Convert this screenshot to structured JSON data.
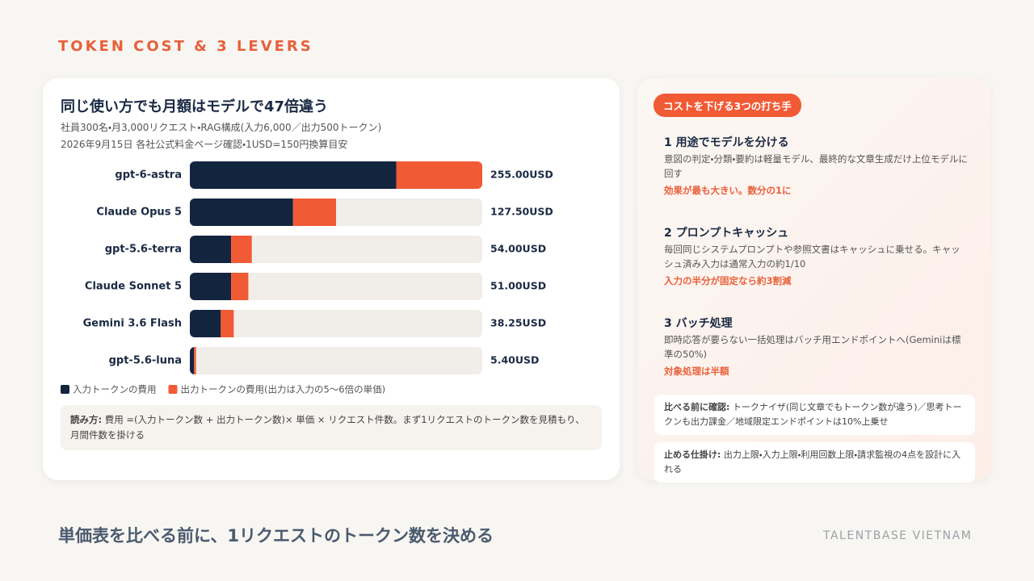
{
  "eyebrow": "TOKEN COST & 3 LEVERS",
  "chart_data": {
    "type": "stacked-barh",
    "title": "同じ使い方でも月額はモデルで47倍違う",
    "subtitle": [
      "社員300名・月3,000リクエスト・RAG構成(入力6,000／出力500トークン)",
      "2026年9月15日 各社公式料金ページ確認・1USD=150円換算目安"
    ],
    "categories": [
      "gpt-6-astra",
      "Claude Opus 5",
      "gpt-5.6-terra",
      "Claude Sonnet 5",
      "Gemini 3.6 Flash",
      "gpt-5.6-luna"
    ],
    "series": [
      {
        "name": "入力トークンの費用",
        "color": "#13243f",
        "values": [
          180,
          90,
          36,
          36,
          27,
          3.6
        ]
      },
      {
        "name": "出力トークンの費用(出力は入力の5〜6倍の単価)",
        "color": "#f05a35",
        "values": [
          75,
          37.5,
          18,
          15,
          11.25,
          1.8
        ]
      }
    ],
    "total_labels": [
      "255.00USD",
      "127.50USD",
      "54.00USD",
      "51.00USD",
      "38.25USD",
      "5.40USD"
    ],
    "xlim": [
      0,
      255
    ],
    "legend": "bottom-left"
  },
  "note": {
    "label": "読み方:",
    "text": "費用 =(入力トークン数 + 出力トークン数)× 単価 × リクエスト件数。まず1リクエストのトークン数を見積もり、月間件数を掛ける"
  },
  "panel": {
    "badge": "コストを下げる3つの打ち手",
    "items": [
      {
        "title": "1 用途でモデルを分ける",
        "text": "意図の判定・分類・要約は軽量モデル、最終的な文章生成だけ上位モデルに回す",
        "highlight": "効果が最も大きい。数分の1に"
      },
      {
        "title": "2 プロンプトキャッシュ",
        "text": "毎回同じシステムプロンプトや参照文書はキャッシュに乗せる。キャッシュ済み入力は通常入力の約1/10",
        "highlight": "入力の半分が固定なら約3割減"
      },
      {
        "title": "3 バッチ処理",
        "text": "即時応答が要らない一括処理はバッチ用エンドポイントへ(Geminiは標準の50%)",
        "highlight": "対象処理は半額"
      }
    ],
    "boxes": [
      {
        "label": "比べる前に確認:",
        "text": "トークナイザ(同じ文章でもトークン数が違う)／思考トークンも出力課金／地域限定エンドポイントは10%上乗せ"
      },
      {
        "label": "止める仕掛け:",
        "text": "出力上限・入力上限・利用回数上限・請求監視の4点を設計に入れる"
      }
    ]
  },
  "footer": {
    "headline": "単価表を比べる前に、1リクエストのトークン数を決める",
    "brand": "TALENTBASE VIETNAM"
  }
}
